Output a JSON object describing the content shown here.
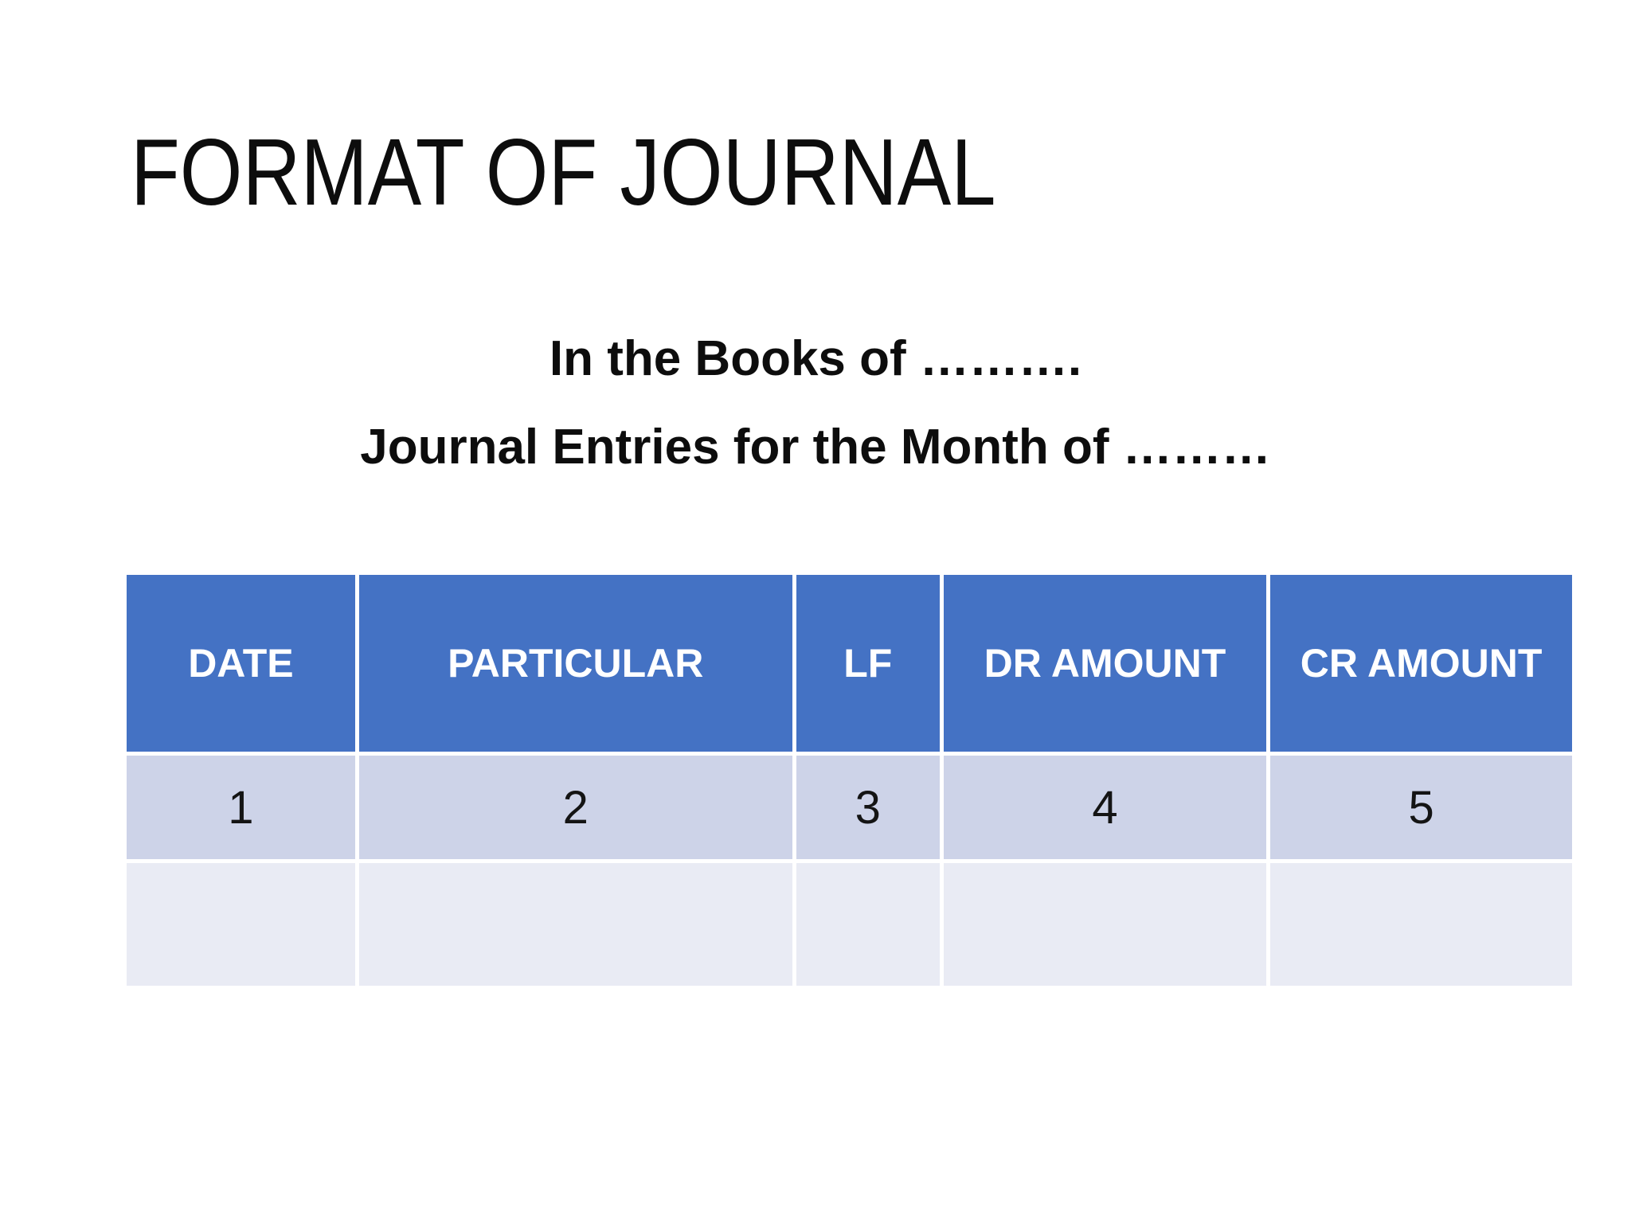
{
  "slide": {
    "title": "FORMAT OF JOURNAL",
    "subtitle_line1": "In the Books of ……….",
    "subtitle_line2": "Journal Entries for the Month of ………",
    "colors": {
      "background": "#FFFFFF",
      "title_text": "#0D0D0D",
      "table_header_bg": "#4472C4",
      "table_header_text": "#FFFFFF",
      "table_band_row_bg": "#CDD3E8",
      "table_light_row_bg": "#E9EBF4",
      "table_body_text": "#141414",
      "table_gridline": "#FFFFFF"
    }
  },
  "table": {
    "headers": [
      "DATE",
      "PARTICULAR",
      "LF",
      "DR AMOUNT",
      "CR AMOUNT"
    ],
    "rows": [
      [
        "1",
        "2",
        "3",
        "4",
        "5"
      ],
      [
        "",
        "",
        "",
        "",
        ""
      ]
    ]
  }
}
